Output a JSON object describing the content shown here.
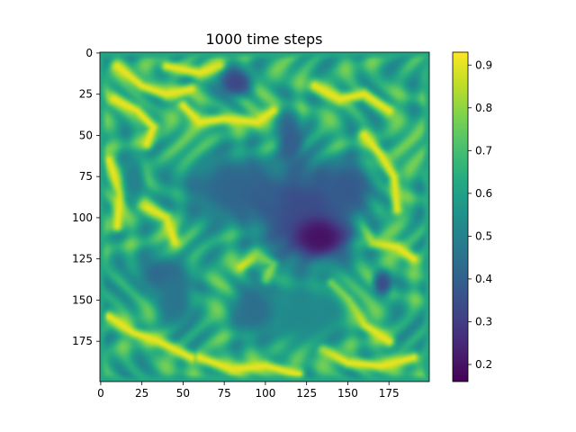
{
  "chart_data": {
    "type": "heatmap",
    "title": "1000 time steps",
    "xlabel": "",
    "ylabel": "",
    "grid_size": 200,
    "xlim": [
      0,
      199
    ],
    "ylim": [
      199,
      0
    ],
    "x_ticks": [
      0,
      25,
      50,
      75,
      100,
      125,
      150,
      175
    ],
    "y_ticks": [
      0,
      25,
      50,
      75,
      100,
      125,
      150,
      175
    ],
    "colorbar": {
      "range": [
        0.16,
        0.93
      ],
      "ticks": [
        0.2,
        0.3,
        0.4,
        0.5,
        0.6,
        0.7,
        0.8,
        0.9
      ],
      "colormap": "viridis"
    },
    "field": {
      "background_level": 0.64,
      "edge_level": 0.62,
      "ridge_level": 0.9,
      "pattern": "reaction-diffusion labyrinth with low-value basins",
      "low_regions": [
        {
          "label": "top-center blob",
          "cx": 82,
          "cy": 18,
          "rx": 11,
          "ry": 9,
          "value": 0.33
        },
        {
          "label": "upper-left vertical patch",
          "cx": 20,
          "cy": 77,
          "rx": 7,
          "ry": 16,
          "value": 0.5
        },
        {
          "label": "left central basin",
          "cx": 80,
          "cy": 82,
          "rx": 32,
          "ry": 22,
          "value": 0.42
        },
        {
          "label": "vertical finger",
          "cx": 115,
          "cy": 52,
          "rx": 8,
          "ry": 17,
          "value": 0.4
        },
        {
          "label": "main central basin",
          "cx": 125,
          "cy": 98,
          "rx": 34,
          "ry": 33,
          "value": 0.34
        },
        {
          "label": "deep center",
          "cx": 133,
          "cy": 112,
          "rx": 16,
          "ry": 12,
          "value": 0.2
        },
        {
          "label": "upper-right basin",
          "cx": 150,
          "cy": 82,
          "rx": 16,
          "ry": 18,
          "value": 0.38
        },
        {
          "label": "lower-left basin",
          "cx": 38,
          "cy": 135,
          "rx": 18,
          "ry": 13,
          "value": 0.42
        },
        {
          "label": "lower-left extension",
          "cx": 45,
          "cy": 150,
          "rx": 12,
          "ry": 17,
          "value": 0.46
        },
        {
          "label": "lower-center basin",
          "cx": 122,
          "cy": 158,
          "rx": 28,
          "ry": 21,
          "value": 0.52
        },
        {
          "label": "lower-center left",
          "cx": 92,
          "cy": 155,
          "rx": 13,
          "ry": 18,
          "value": 0.44
        },
        {
          "label": "right small spot",
          "cx": 171,
          "cy": 140,
          "rx": 6,
          "ry": 8,
          "value": 0.35
        }
      ],
      "ridges": [
        {
          "label": "top-left arc",
          "points": [
            [
              8,
              28
            ],
            [
              22,
              35
            ],
            [
              32,
              45
            ],
            [
              28,
              55
            ]
          ]
        },
        {
          "label": "top-left ridge",
          "points": [
            [
              10,
              8
            ],
            [
              25,
              20
            ],
            [
              40,
              25
            ],
            [
              55,
              22
            ]
          ]
        },
        {
          "label": "top band",
          "points": [
            [
              40,
              8
            ],
            [
              60,
              12
            ],
            [
              72,
              8
            ]
          ]
        },
        {
          "label": "upper-center ridge",
          "points": [
            [
              50,
              32
            ],
            [
              60,
              42
            ],
            [
              75,
              40
            ],
            [
              95,
              42
            ],
            [
              105,
              35
            ]
          ]
        },
        {
          "label": "upper-right arc",
          "points": [
            [
              130,
              20
            ],
            [
              145,
              28
            ],
            [
              160,
              25
            ],
            [
              175,
              35
            ]
          ]
        },
        {
          "label": "right vertical ridge",
          "points": [
            [
              160,
              50
            ],
            [
              170,
              62
            ],
            [
              178,
              75
            ],
            [
              180,
              95
            ]
          ]
        },
        {
          "label": "left band",
          "points": [
            [
              5,
              65
            ],
            [
              12,
              85
            ],
            [
              10,
              105
            ]
          ]
        },
        {
          "label": "left mid ridge",
          "points": [
            [
              25,
              92
            ],
            [
              40,
              100
            ],
            [
              45,
              115
            ]
          ]
        },
        {
          "label": "center hook",
          "points": [
            [
              85,
              130
            ],
            [
              95,
              122
            ],
            [
              105,
              128
            ],
            [
              100,
              138
            ]
          ]
        },
        {
          "label": "right mid band",
          "points": [
            [
              155,
              100
            ],
            [
              165,
              115
            ],
            [
              180,
              118
            ],
            [
              190,
              125
            ]
          ]
        },
        {
          "label": "lower-right ridge",
          "points": [
            [
              140,
              140
            ],
            [
              150,
              150
            ],
            [
              160,
              165
            ],
            [
              175,
              175
            ]
          ]
        },
        {
          "label": "lower-left band",
          "points": [
            [
              5,
              160
            ],
            [
              20,
              170
            ],
            [
              35,
              175
            ],
            [
              55,
              185
            ]
          ]
        },
        {
          "label": "bottom band",
          "points": [
            [
              60,
              185
            ],
            [
              80,
              192
            ],
            [
              100,
              190
            ],
            [
              120,
              195
            ]
          ]
        },
        {
          "label": "bottom-right band",
          "points": [
            [
              135,
              180
            ],
            [
              150,
              188
            ],
            [
              170,
              190
            ],
            [
              190,
              185
            ]
          ]
        }
      ]
    }
  }
}
